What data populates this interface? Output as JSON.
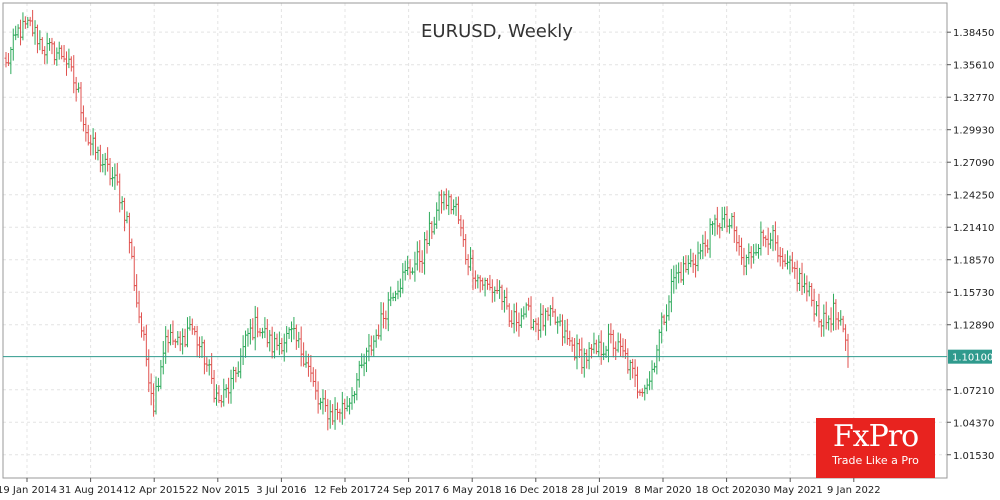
{
  "brand": {
    "name": "FxPro",
    "tagline": "Trade Like a Pro"
  },
  "chart_data": {
    "type": "ohlc",
    "title": "EURUSD, Weekly",
    "ylim": [
      0.995,
      1.41
    ],
    "y_ticks": [
      "1.38450",
      "1.35610",
      "1.32770",
      "1.29930",
      "1.27090",
      "1.24250",
      "1.21410",
      "1.18570",
      "1.15730",
      "1.12890",
      "1.10100",
      "1.07210",
      "1.04370",
      "1.01530"
    ],
    "x_ticks": [
      "19 Jan 2014",
      "31 Aug 2014",
      "12 Apr 2015",
      "22 Nov 2015",
      "3 Jul 2016",
      "12 Feb 2017",
      "24 Sep 2017",
      "6 May 2018",
      "16 Dec 2018",
      "28 Jul 2019",
      "8 Mar 2020",
      "18 Oct 2020",
      "30 May 2021",
      "9 Jan 2022"
    ],
    "current_price": {
      "label": "1.10100",
      "value": 1.101
    },
    "colors": {
      "up": "#2eaa5b",
      "down": "#e0524f",
      "current_line": "#2f9a8d",
      "grid": "#e4e4e4"
    },
    "series_path_by_week": [
      [
        0,
        1.355
      ],
      [
        5,
        1.385
      ],
      [
        10,
        1.39
      ],
      [
        16,
        1.37
      ],
      [
        24,
        1.365
      ],
      [
        30,
        1.33
      ],
      [
        34,
        1.29
      ],
      [
        40,
        1.27
      ],
      [
        46,
        1.25
      ],
      [
        50,
        1.22
      ],
      [
        54,
        1.15
      ],
      [
        58,
        1.1
      ],
      [
        61,
        1.06
      ],
      [
        66,
        1.12
      ],
      [
        72,
        1.11
      ],
      [
        76,
        1.13
      ],
      [
        82,
        1.1
      ],
      [
        88,
        1.06
      ],
      [
        94,
        1.08
      ],
      [
        100,
        1.12
      ],
      [
        104,
        1.13
      ],
      [
        110,
        1.11
      ],
      [
        118,
        1.12
      ],
      [
        124,
        1.1
      ],
      [
        129,
        1.06
      ],
      [
        135,
        1.05
      ],
      [
        141,
        1.06
      ],
      [
        147,
        1.09
      ],
      [
        153,
        1.12
      ],
      [
        160,
        1.16
      ],
      [
        166,
        1.175
      ],
      [
        172,
        1.19
      ],
      [
        176,
        1.215
      ],
      [
        180,
        1.24
      ],
      [
        186,
        1.23
      ],
      [
        190,
        1.19
      ],
      [
        195,
        1.17
      ],
      [
        200,
        1.16
      ],
      [
        204,
        1.16
      ],
      [
        208,
        1.13
      ],
      [
        214,
        1.14
      ],
      [
        220,
        1.13
      ],
      [
        226,
        1.135
      ],
      [
        232,
        1.115
      ],
      [
        238,
        1.1
      ],
      [
        244,
        1.105
      ],
      [
        250,
        1.115
      ],
      [
        256,
        1.1
      ],
      [
        261,
        1.075
      ],
      [
        266,
        1.08
      ],
      [
        270,
        1.12
      ],
      [
        276,
        1.17
      ],
      [
        282,
        1.18
      ],
      [
        288,
        1.195
      ],
      [
        294,
        1.22
      ],
      [
        300,
        1.215
      ],
      [
        305,
        1.18
      ],
      [
        310,
        1.2
      ],
      [
        316,
        1.21
      ],
      [
        320,
        1.18
      ],
      [
        326,
        1.175
      ],
      [
        332,
        1.155
      ],
      [
        338,
        1.13
      ],
      [
        342,
        1.14
      ],
      [
        346,
        1.12
      ],
      [
        348,
        1.101
      ]
    ]
  }
}
